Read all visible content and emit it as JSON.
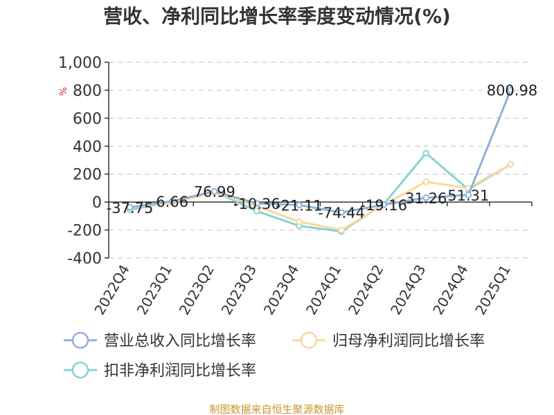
{
  "chart_data": {
    "type": "line",
    "title": "营收、净利同比增长率季度变动情况(%)",
    "y_unit": "%",
    "categories": [
      "2022Q4",
      "2023Q1",
      "2023Q2",
      "2023Q3",
      "2023Q4",
      "2024Q1",
      "2024Q2",
      "2024Q3",
      "2024Q4",
      "2025Q1"
    ],
    "ylim": [
      -400,
      1000
    ],
    "yticks": [
      -400,
      -200,
      0,
      200,
      400,
      600,
      800,
      1000
    ],
    "ytick_labels": [
      "-400",
      "-200",
      "0",
      "200",
      "400",
      "600",
      "800",
      "1,000"
    ],
    "grid": true,
    "legend_position": "bottom",
    "series": [
      {
        "name": "营业总收入同比增长率",
        "color": "#8fb0d9",
        "values": [
          -37.75,
          6.66,
          76.99,
          -10.36,
          -21.11,
          -74.44,
          -19.16,
          31.26,
          51.31,
          800.98
        ],
        "labels": [
          "-37.75",
          "6.66",
          "76.99",
          "-10.36",
          "-21.11",
          "-74.44",
          "-19.16",
          "31.26",
          "51.31",
          "800.98"
        ]
      },
      {
        "name": "归母净利润同比增长率",
        "color": "#fad89a",
        "values": [
          -40,
          -5,
          70,
          -30,
          -140,
          -200,
          -20,
          145,
          100,
          270
        ],
        "labels": []
      },
      {
        "name": "扣非净利润同比增长率",
        "color": "#86d3d6",
        "values": [
          -55,
          0,
          75,
          -65,
          -170,
          -210,
          -15,
          350,
          90,
          270
        ],
        "labels": []
      }
    ]
  },
  "footer": {
    "source": "制图数据来自恒生聚源数据库",
    "source_color": "#c8962e"
  }
}
